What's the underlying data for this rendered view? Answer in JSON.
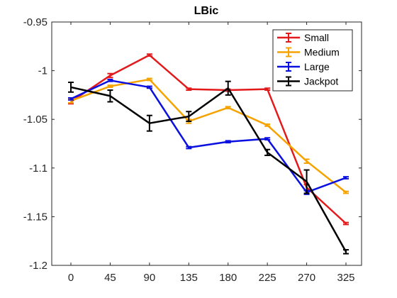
{
  "chart_data": {
    "type": "line",
    "title": "LBic",
    "xlabel": "",
    "ylabel": "",
    "categories": [
      "0",
      "45",
      "90",
      "135",
      "180",
      "225",
      "270",
      "325"
    ],
    "ylim": [
      -1.2,
      -0.95
    ],
    "yticks": [
      -0.95,
      -1,
      -1.05,
      -1.1,
      -1.15,
      -1.2
    ],
    "ytick_labels": [
      "-0.95",
      "-1",
      "-1.05",
      "-1.1",
      "-1.15",
      "-1.2"
    ],
    "y_reversed": true,
    "grid": false,
    "legend_position": "top-right",
    "error_bars": true,
    "series": [
      {
        "name": "Small",
        "color": "#e31a1c",
        "values": [
          -1.032,
          -1.005,
          -0.984,
          -1.019,
          -1.02,
          -1.019,
          -1.12,
          -1.157
        ],
        "errors": [
          0.002,
          0.002,
          0.001,
          0.001,
          0.001,
          0.001,
          0.003,
          0.001
        ]
      },
      {
        "name": "Medium",
        "color": "#f5a300",
        "values": [
          -1.031,
          -1.016,
          -1.009,
          -1.052,
          -1.038,
          -1.056,
          -1.093,
          -1.125
        ],
        "errors": [
          0.002,
          0.001,
          0.001,
          0.002,
          0.001,
          0.001,
          0.002,
          0.001
        ]
      },
      {
        "name": "Large",
        "color": "#0a10e0",
        "values": [
          -1.029,
          -1.01,
          -1.017,
          -1.079,
          -1.073,
          -1.07,
          -1.125,
          -1.11
        ],
        "errors": [
          0.001,
          0.001,
          0.001,
          0.001,
          0.001,
          0.001,
          0.002,
          0.001
        ]
      },
      {
        "name": "Jackpot",
        "color": "#000000",
        "values": [
          -1.017,
          -1.026,
          -1.054,
          -1.047,
          -1.018,
          -1.084,
          -1.114,
          -1.186
        ],
        "errors": [
          0.005,
          0.006,
          0.008,
          0.005,
          0.007,
          0.003,
          0.012,
          0.002
        ]
      }
    ]
  }
}
